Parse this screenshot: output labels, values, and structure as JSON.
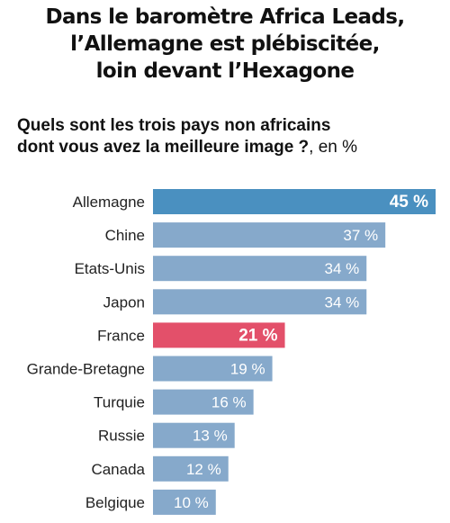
{
  "title_lines": [
    "Dans le baromètre Africa Leads,",
    "l’Allemagne est plébiscitée,",
    "loin devant l’Hexagone"
  ],
  "subtitle": {
    "line1": "Quels sont les trois pays non africains",
    "line2_bold": "dont vous avez la meilleure image ?",
    "line2_rest": ", en %"
  },
  "colors": {
    "highlight": "#4a90c0",
    "default": "#86a9cb",
    "france": "#e3506a"
  },
  "chart_data": {
    "type": "bar",
    "orientation": "horizontal",
    "categories": [
      "Allemagne",
      "Chine",
      "Etats-Unis",
      "Japon",
      "France",
      "Grande-Bretagne",
      "Turquie",
      "Russie",
      "Canada",
      "Belgique"
    ],
    "values": [
      45,
      37,
      34,
      34,
      21,
      19,
      16,
      13,
      12,
      10
    ],
    "value_labels": [
      "45 %",
      "37 %",
      "34 %",
      "34 %",
      "21 %",
      "19 %",
      "16 %",
      "13 %",
      "12 %",
      "10 %"
    ],
    "emphasized": [
      "Allemagne",
      "France"
    ],
    "title": "Dans le baromètre Africa Leads, l’Allemagne est plébiscitée, loin devant l’Hexagone",
    "xlabel": "",
    "ylabel": "",
    "xlim": [
      0,
      45
    ],
    "grid": false,
    "legend": "none"
  }
}
